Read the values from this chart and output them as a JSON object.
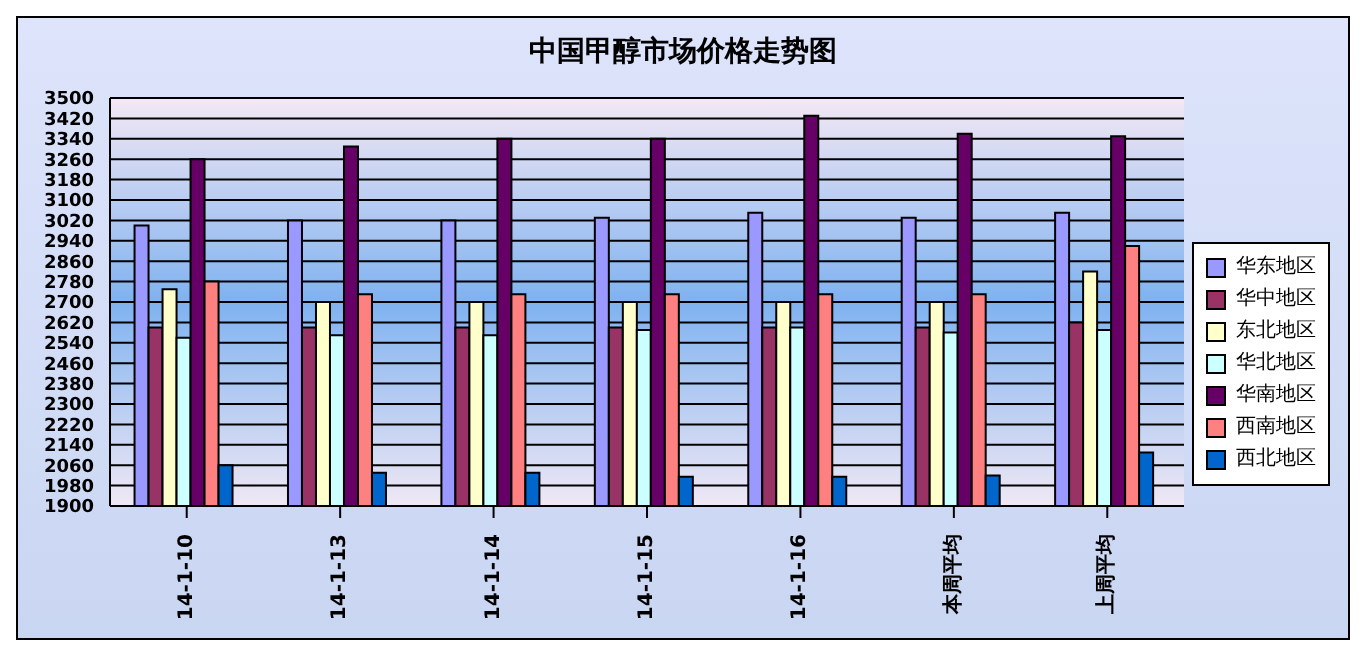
{
  "chart_data": {
    "type": "bar",
    "title": "中国甲醇市场价格走势图",
    "categories": [
      "14-1-10",
      "14-1-13",
      "14-1-14",
      "14-1-15",
      "14-1-16",
      "本周平均",
      "上周平均"
    ],
    "series": [
      {
        "name": "华东地区",
        "color": "#9999ff",
        "values": [
          3000,
          3020,
          3020,
          3030,
          3050,
          3030,
          3050
        ]
      },
      {
        "name": "华中地区",
        "color": "#993366",
        "values": [
          2600,
          2600,
          2600,
          2600,
          2600,
          2600,
          2620
        ]
      },
      {
        "name": "东北地区",
        "color": "#ffffcc",
        "values": [
          2750,
          2700,
          2700,
          2700,
          2700,
          2700,
          2820
        ]
      },
      {
        "name": "华北地区",
        "color": "#ccffff",
        "values": [
          2560,
          2570,
          2570,
          2590,
          2600,
          2580,
          2590
        ]
      },
      {
        "name": "华南地区",
        "color": "#660066",
        "values": [
          3260,
          3310,
          3340,
          3340,
          3430,
          3360,
          3350
        ]
      },
      {
        "name": "西南地区",
        "color": "#ff8080",
        "values": [
          2780,
          2730,
          2730,
          2730,
          2730,
          2730,
          2920
        ]
      },
      {
        "name": "西北地区",
        "color": "#0066cc",
        "values": [
          2060,
          2030,
          2030,
          2015,
          2015,
          2020,
          2110
        ]
      }
    ],
    "ylim": [
      1900,
      3500
    ],
    "yticks": [
      1900,
      1980,
      2060,
      2140,
      2220,
      2300,
      2380,
      2460,
      2540,
      2620,
      2700,
      2780,
      2860,
      2940,
      3020,
      3100,
      3180,
      3260,
      3340,
      3420,
      3500
    ],
    "grid": "y",
    "legend": "right"
  }
}
